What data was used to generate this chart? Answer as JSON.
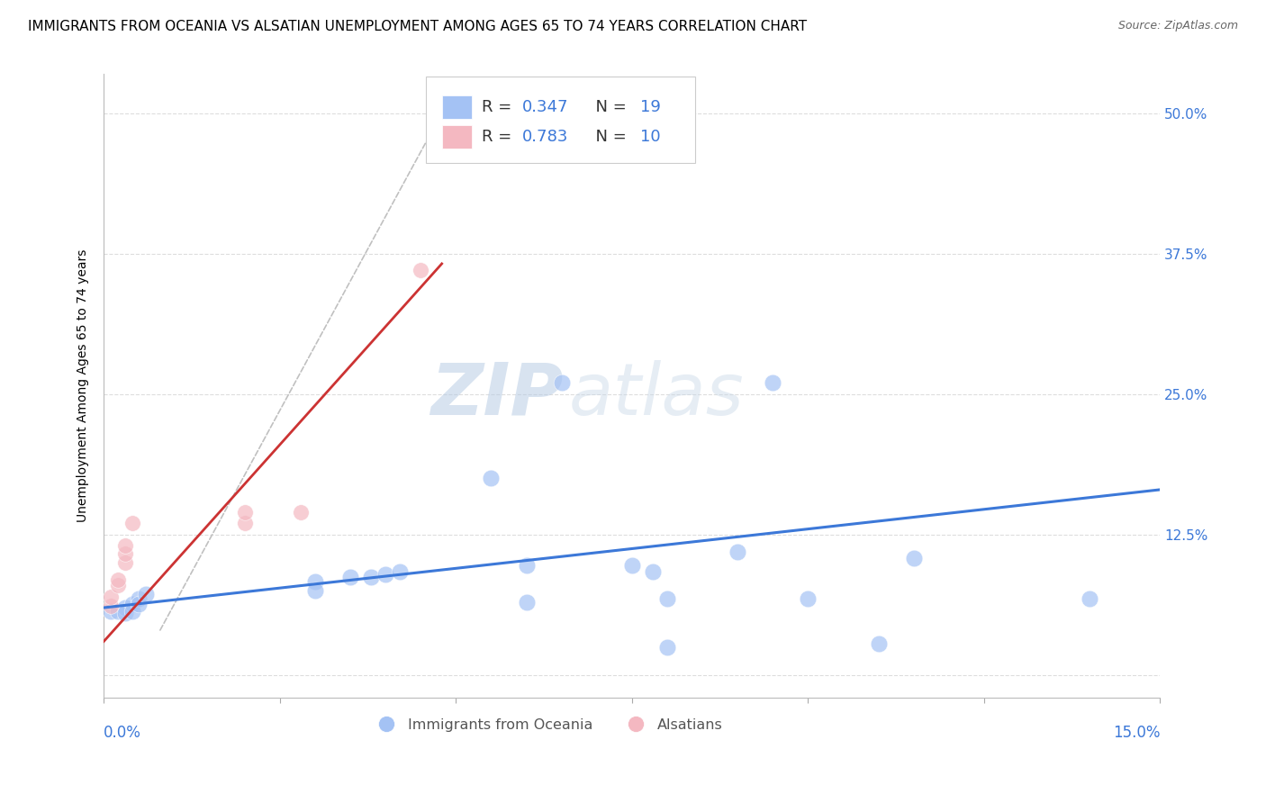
{
  "title": "IMMIGRANTS FROM OCEANIA VS ALSATIAN UNEMPLOYMENT AMONG AGES 65 TO 74 YEARS CORRELATION CHART",
  "source": "Source: ZipAtlas.com",
  "ylabel": "Unemployment Among Ages 65 to 74 years",
  "xlim": [
    0.0,
    0.15
  ],
  "ylim": [
    -0.02,
    0.535
  ],
  "yticks": [
    0.0,
    0.125,
    0.25,
    0.375,
    0.5
  ],
  "ytick_labels": [
    "",
    "12.5%",
    "25.0%",
    "37.5%",
    "50.0%"
  ],
  "xticks": [
    0.0,
    0.025,
    0.05,
    0.075,
    0.1,
    0.125,
    0.15
  ],
  "blue_color": "#a4c2f4",
  "pink_color": "#f4b8c1",
  "blue_line_color": "#3c78d8",
  "pink_line_color": "#cc3333",
  "dash_line_color": "#cccccc",
  "blue_scatter": [
    [
      0.001,
      0.057
    ],
    [
      0.002,
      0.057
    ],
    [
      0.003,
      0.06
    ],
    [
      0.003,
      0.055
    ],
    [
      0.004,
      0.063
    ],
    [
      0.004,
      0.057
    ],
    [
      0.005,
      0.068
    ],
    [
      0.005,
      0.063
    ],
    [
      0.006,
      0.072
    ],
    [
      0.03,
      0.083
    ],
    [
      0.03,
      0.075
    ],
    [
      0.035,
      0.087
    ],
    [
      0.038,
      0.087
    ],
    [
      0.04,
      0.09
    ],
    [
      0.042,
      0.092
    ],
    [
      0.055,
      0.175
    ],
    [
      0.06,
      0.098
    ],
    [
      0.06,
      0.065
    ],
    [
      0.065,
      0.26
    ],
    [
      0.075,
      0.098
    ],
    [
      0.078,
      0.092
    ],
    [
      0.08,
      0.068
    ],
    [
      0.08,
      0.025
    ],
    [
      0.09,
      0.11
    ],
    [
      0.095,
      0.26
    ],
    [
      0.1,
      0.068
    ],
    [
      0.11,
      0.028
    ],
    [
      0.115,
      0.104
    ],
    [
      0.14,
      0.068
    ]
  ],
  "pink_scatter": [
    [
      0.001,
      0.062
    ],
    [
      0.001,
      0.07
    ],
    [
      0.002,
      0.08
    ],
    [
      0.002,
      0.085
    ],
    [
      0.003,
      0.1
    ],
    [
      0.003,
      0.108
    ],
    [
      0.003,
      0.115
    ],
    [
      0.004,
      0.135
    ],
    [
      0.02,
      0.135
    ],
    [
      0.02,
      0.145
    ],
    [
      0.028,
      0.145
    ],
    [
      0.045,
      0.36
    ]
  ],
  "watermark_zip": "ZIP",
  "watermark_atlas": "atlas",
  "title_fontsize": 11,
  "axis_label_fontsize": 10,
  "tick_fontsize": 11,
  "legend_fontsize": 13
}
